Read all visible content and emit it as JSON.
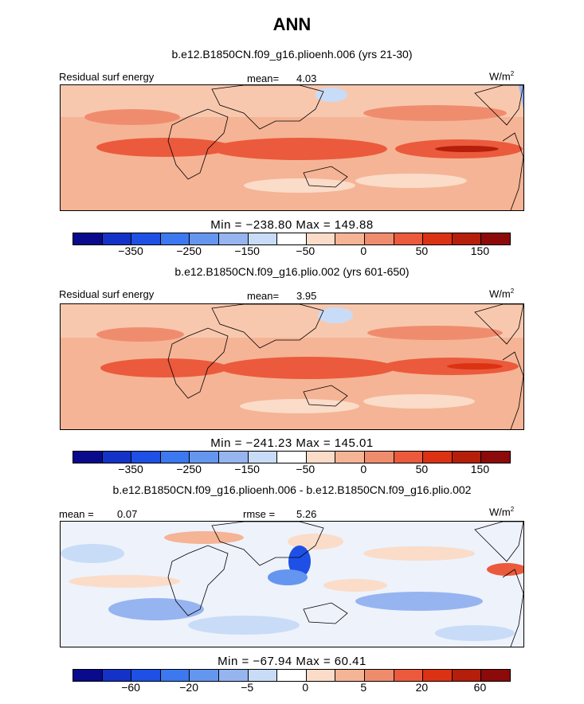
{
  "title": "ANN",
  "colorbar_colors": [
    "#0a0a8c",
    "#1432c8",
    "#1e50e6",
    "#3c78f0",
    "#6496f0",
    "#96b4f0",
    "#c8dcf8",
    "#ffffff",
    "#fadcc8",
    "#f5b496",
    "#f08c6e",
    "#eb5a3c",
    "#dc3214",
    "#b41e0a",
    "#8c0a0a"
  ],
  "top": {
    "subtitle": "b.e12.B1850CN.f09_g16.plioenh.006 (yrs 21-30)",
    "left_label": "Residual surf energy",
    "mean_label": "mean=",
    "mean_value": "4.03",
    "units": "W/m",
    "units_sup": "2",
    "minmax": "Min = −238.80  Max = 149.88",
    "ticks": [
      "−350",
      "−250",
      "−150",
      "−50",
      "0",
      "50",
      "150"
    ]
  },
  "middle": {
    "subtitle": "b.e12.B1850CN.f09_g16.plio.002 (yrs 601-650)",
    "left_label": "Residual surf energy",
    "mean_label": "mean=",
    "mean_value": "3.95",
    "units": "W/m",
    "units_sup": "2",
    "minmax": "Min = −241.23  Max = 145.01",
    "ticks": [
      "−350",
      "−250",
      "−150",
      "−50",
      "0",
      "50",
      "150"
    ]
  },
  "bottom": {
    "subtitle": "b.e12.B1850CN.f09_g16.plioenh.006 - b.e12.B1850CN.f09_g16.plio.002",
    "mean_label": "mean =",
    "mean_value": "0.07",
    "rmse_label": "rmse =",
    "rmse_value": "5.26",
    "units": "W/m",
    "units_sup": "2",
    "minmax": "Min = −67.94  Max =  60.41",
    "ticks": [
      "−60",
      "−20",
      "−5",
      "0",
      "5",
      "20",
      "60"
    ]
  },
  "chart_data": [
    {
      "type": "heatmap",
      "title": "b.e12.B1850CN.f09_g16.plioenh.006 (yrs 21-30)",
      "variable": "Residual surf energy",
      "units": "W/m2",
      "mean": 4.03,
      "min": -238.8,
      "max": 149.88,
      "colorbar_ticks": [
        -350,
        -250,
        -150,
        -50,
        0,
        50,
        150
      ]
    },
    {
      "type": "heatmap",
      "title": "b.e12.B1850CN.f09_g16.plio.002 (yrs 601-650)",
      "variable": "Residual surf energy",
      "units": "W/m2",
      "mean": 3.95,
      "min": -241.23,
      "max": 145.01,
      "colorbar_ticks": [
        -350,
        -250,
        -150,
        -50,
        0,
        50,
        150
      ]
    },
    {
      "type": "heatmap",
      "title": "b.e12.B1850CN.f09_g16.plioenh.006 - b.e12.B1850CN.f09_g16.plio.002",
      "units": "W/m2",
      "mean": 0.07,
      "rmse": 5.26,
      "min": -67.94,
      "max": 60.41,
      "colorbar_ticks": [
        -60,
        -20,
        -5,
        0,
        5,
        20,
        60
      ]
    }
  ]
}
